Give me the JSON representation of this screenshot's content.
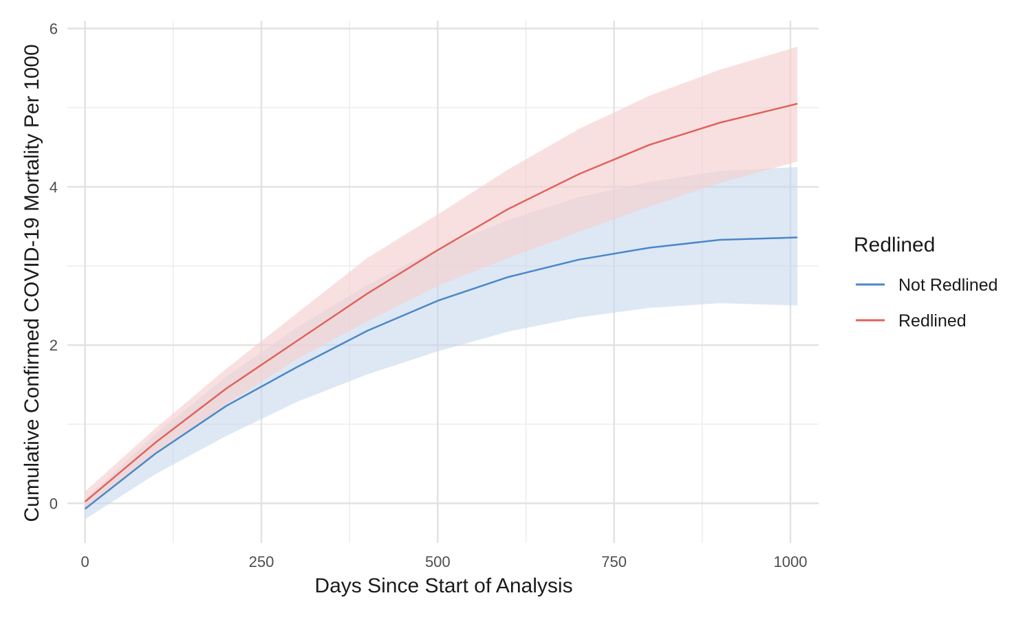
{
  "chart_data": {
    "type": "line",
    "title": "",
    "xlabel": "Days Since Start of Analysis",
    "ylabel": "Cumulative Confirmed COVID-19 Mortality Per 1000",
    "xlim": [
      -25,
      1040
    ],
    "ylim": [
      -0.5,
      6.1
    ],
    "x_ticks": [
      0,
      250,
      500,
      750,
      1000
    ],
    "x_tick_labels": [
      "0",
      "250",
      "500",
      "750",
      "1000"
    ],
    "y_ticks": [
      0,
      2,
      4,
      6
    ],
    "y_tick_labels": [
      "0",
      "2",
      "4",
      "6"
    ],
    "grid": true,
    "legend": {
      "title": "Redlined",
      "position": "right"
    },
    "x": [
      0,
      100,
      200,
      300,
      400,
      500,
      600,
      700,
      800,
      900,
      1010
    ],
    "series": [
      {
        "name": "Not Redlined",
        "color": "#4a86c8",
        "band_color": "#c6d8ec",
        "values": [
          -0.07,
          0.63,
          1.23,
          1.72,
          2.18,
          2.56,
          2.86,
          3.08,
          3.23,
          3.33,
          3.36
        ],
        "lower": [
          -0.2,
          0.37,
          0.85,
          1.28,
          1.63,
          1.92,
          2.17,
          2.35,
          2.47,
          2.53,
          2.5
        ],
        "upper": [
          0.05,
          0.88,
          1.6,
          2.22,
          2.76,
          3.22,
          3.58,
          3.87,
          4.06,
          4.2,
          4.25
        ]
      },
      {
        "name": "Redlined",
        "color": "#e0625a",
        "band_color": "#f6cfcf",
        "values": [
          0.02,
          0.77,
          1.45,
          2.05,
          2.65,
          3.2,
          3.72,
          4.16,
          4.53,
          4.81,
          5.05
        ],
        "lower": [
          -0.08,
          0.62,
          1.25,
          1.82,
          2.3,
          2.75,
          3.1,
          3.43,
          3.75,
          4.05,
          4.32
        ],
        "upper": [
          0.15,
          0.95,
          1.7,
          2.4,
          3.1,
          3.65,
          4.22,
          4.73,
          5.15,
          5.48,
          5.77
        ]
      }
    ]
  }
}
